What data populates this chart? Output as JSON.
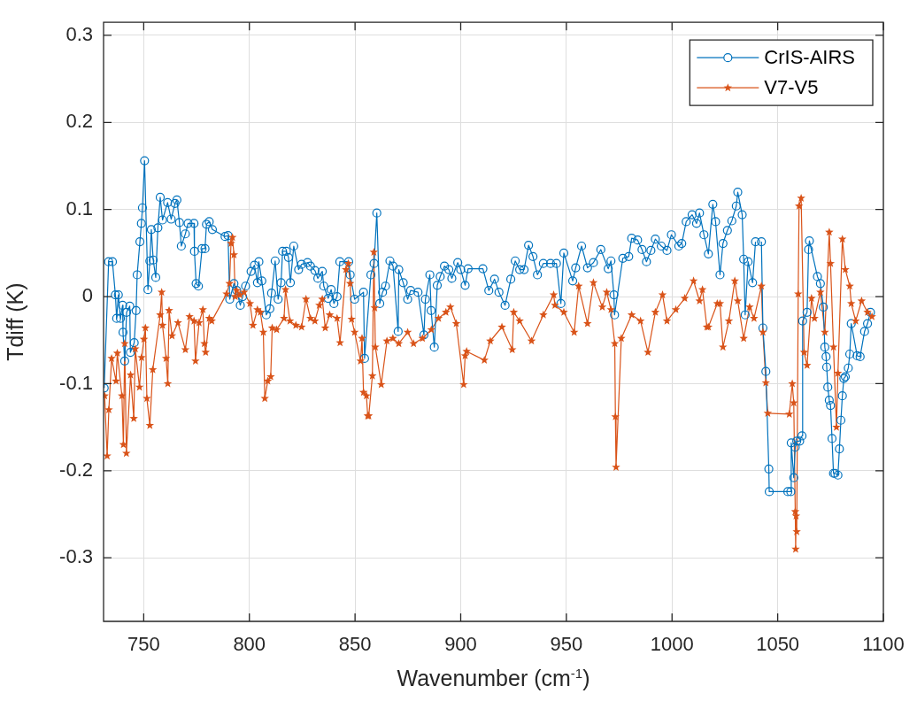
{
  "chart_data": {
    "type": "line",
    "xlabel": "Wavenumber (cm$^{-1}$)",
    "ylabel": "Tdiff (K)",
    "xlim": [
      731,
      1100
    ],
    "xticks": [
      750,
      800,
      850,
      900,
      950,
      1000,
      1050,
      1100
    ],
    "ylim": [
      -0.373,
      0.315
    ],
    "yticks": [
      -0.3,
      -0.2,
      -0.1,
      0,
      0.1,
      0.2,
      0.3
    ],
    "grid": true,
    "legend": "top right",
    "line_style": "solid",
    "series": [
      {
        "name": "CrIS-AIRS",
        "color": "#0072bd",
        "marker": "circle",
        "x": [
          731.3,
          733.4,
          735.2,
          736.6,
          737.2,
          738.0,
          739.0,
          740.0,
          740.2,
          741.0,
          741.9,
          743.4,
          743.7,
          745.5,
          746.4,
          746.9,
          748.2,
          748.9,
          749.4,
          750.4,
          752.0,
          752.9,
          753.6,
          754.5,
          755.7,
          756.7,
          757.8,
          758.9,
          761.3,
          763.0,
          764.8,
          765.7,
          766.9,
          767.8,
          769.7,
          771.0,
          773.8,
          774.0,
          774.8,
          775.9,
          777.6,
          779.0,
          779.7,
          781.0,
          782.5,
          788.5,
          789.9,
          790.7,
          792.7,
          794.0,
          795.7,
          796.8,
          798.2,
          800.8,
          802.4,
          803.8,
          804.5,
          805.9,
          808.0,
          809.7,
          810.5,
          812.2,
          813.6,
          815.0,
          815.7,
          817.5,
          818.5,
          819.4,
          821.0,
          823.3,
          824.7,
          827.5,
          828.9,
          831.0,
          832.4,
          834.5,
          835.2,
          837.3,
          838.7,
          840.0,
          841.5,
          842.8,
          847.0,
          847.7,
          849.8,
          854.0,
          854.5,
          857.5,
          859.0,
          860.3,
          861.7,
          863.0,
          864.4,
          866.5,
          868.0,
          870.4,
          870.7,
          872.8,
          874.9,
          876.3,
          879.8,
          882.6,
          883.3,
          885.4,
          886.0,
          887.5,
          888.9,
          890.3,
          892.3,
          894.4,
          895.8,
          898.6,
          900.0,
          902.1,
          903.5,
          910.5,
          913.3,
          916.0,
          918.1,
          921.0,
          923.7,
          925.8,
          927.9,
          930.0,
          932.1,
          934.2,
          936.3,
          939.1,
          942.5,
          945.3,
          947.4,
          948.8,
          953.0,
          954.4,
          957.2,
          960.0,
          962.8,
          966.3,
          969.8,
          971.1,
          972.5,
          972.8,
          976.7,
          979.5,
          980.9,
          983.7,
          985.8,
          987.9,
          990.0,
          992.1,
          994.9,
          997.6,
          999.7,
          1003.2,
          1004.6,
          1006.7,
          1009.5,
          1011.6,
          1013.0,
          1015.1,
          1017.2,
          1019.3,
          1020.6,
          1022.7,
          1024.1,
          1026.2,
          1028.3,
          1030.4,
          1031.1,
          1033.2,
          1033.9,
          1034.6,
          1036.0,
          1038.1,
          1039.5,
          1040.9,
          1042.3,
          1043.0,
          1044.4,
          1045.8,
          1046.0,
          1054.8,
          1056.2,
          1056.4,
          1057.6,
          1058.3,
          1059.0,
          1060.4,
          1061.5,
          1061.8,
          1063.9,
          1064.6,
          1065.0,
          1068.8,
          1070.2,
          1071.6,
          1072.3,
          1072.9,
          1073.2,
          1073.7,
          1074.4,
          1075.0,
          1075.7,
          1076.4,
          1077.1,
          1078.5,
          1079.2,
          1079.9,
          1080.6,
          1081.3,
          1082.0,
          1083.4,
          1084.1,
          1084.8,
          1087.6,
          1089.0,
          1091.1,
          1092.5,
          1093.9
        ],
        "values": [
          -0.105,
          0.04,
          0.04,
          0.002,
          -0.025,
          0.002,
          -0.025,
          -0.01,
          -0.041,
          -0.074,
          -0.018,
          -0.011,
          -0.064,
          -0.053,
          -0.016,
          0.025,
          0.063,
          0.084,
          0.102,
          0.156,
          0.008,
          0.041,
          0.077,
          0.042,
          0.022,
          0.079,
          0.114,
          0.088,
          0.108,
          0.089,
          0.107,
          0.111,
          0.085,
          0.058,
          0.072,
          0.084,
          0.084,
          0.052,
          0.015,
          0.012,
          0.055,
          0.055,
          0.083,
          0.086,
          0.077,
          0.069,
          0.07,
          -0.003,
          0.015,
          0.007,
          -0.01,
          0.0,
          0.012,
          0.029,
          0.036,
          0.016,
          0.04,
          0.018,
          -0.021,
          -0.014,
          0.004,
          0.041,
          -0.003,
          0.016,
          0.052,
          0.052,
          0.045,
          0.016,
          0.058,
          0.031,
          0.037,
          0.039,
          0.035,
          0.03,
          0.021,
          0.029,
          0.012,
          -0.002,
          0.008,
          -0.008,
          0.0,
          0.04,
          0.04,
          0.025,
          -0.003,
          0.005,
          -0.071,
          0.025,
          0.038,
          0.096,
          -0.008,
          0.005,
          0.012,
          0.041,
          0.035,
          -0.04,
          0.031,
          0.016,
          -0.003,
          0.007,
          0.005,
          -0.044,
          -0.003,
          0.025,
          -0.016,
          -0.058,
          0.013,
          0.023,
          0.035,
          0.031,
          0.021,
          0.039,
          0.031,
          0.013,
          0.032,
          0.032,
          0.007,
          0.02,
          0.005,
          -0.01,
          0.02,
          0.041,
          0.031,
          0.031,
          0.059,
          0.046,
          0.025,
          0.038,
          0.038,
          0.038,
          -0.008,
          0.05,
          0.018,
          0.033,
          0.058,
          0.033,
          0.039,
          0.054,
          0.032,
          0.041,
          0.002,
          -0.021,
          0.044,
          0.046,
          0.067,
          0.065,
          0.054,
          0.04,
          0.053,
          0.066,
          0.058,
          0.053,
          0.071,
          0.058,
          0.061,
          0.086,
          0.094,
          0.084,
          0.096,
          0.071,
          0.049,
          0.106,
          0.086,
          0.025,
          0.061,
          0.076,
          0.087,
          0.104,
          0.12,
          0.094,
          0.043,
          -0.021,
          0.04,
          0.016,
          0.063,
          null,
          0.063,
          -0.036,
          -0.086,
          -0.198,
          -0.224,
          -0.224,
          -0.224,
          -0.168,
          -0.208,
          -0.173,
          -0.166,
          -0.166,
          -0.16,
          -0.028,
          -0.018,
          0.054,
          0.064,
          0.023,
          0.015,
          -0.012,
          -0.058,
          -0.069,
          -0.081,
          -0.104,
          -0.119,
          -0.125,
          -0.163,
          -0.203,
          -0.203,
          -0.205,
          -0.175,
          -0.142,
          -0.114,
          -0.094,
          -0.092,
          -0.082,
          -0.066,
          -0.031,
          -0.068,
          -0.069,
          -0.04,
          -0.031,
          -0.018
        ]
      },
      {
        "name": "V7-V5",
        "color": "#d95319",
        "marker": "star",
        "x": [
          731.5,
          732.7,
          733.5,
          734.8,
          736.9,
          737.5,
          739.7,
          740.4,
          741.0,
          741.8,
          743.8,
          745.3,
          746.0,
          748.0,
          749.0,
          750.1,
          750.8,
          751.5,
          752.9,
          754.3,
          757.8,
          758.5,
          758.9,
          760.6,
          761.4,
          762.0,
          763.4,
          766.2,
          769.7,
          771.7,
          773.8,
          774.5,
          776.2,
          778.0,
          778.7,
          779.3,
          781.0,
          782.2,
          789.2,
          790.6,
          791.3,
          792.0,
          792.7,
          793.3,
          794.0,
          795.5,
          797.5,
          800.3,
          801.7,
          803.8,
          805.2,
          806.6,
          807.3,
          808.7,
          810.1,
          810.8,
          812.9,
          816.4,
          817.1,
          819.2,
          822.0,
          824.7,
          826.8,
          828.9,
          831.0,
          833.1,
          834.5,
          835.9,
          838.0,
          841.5,
          842.9,
          845.7,
          846.8,
          847.7,
          848.4,
          849.8,
          852.6,
          853.3,
          854.0,
          855.4,
          856.0,
          856.5,
          858.2,
          858.9,
          859.3,
          859.6,
          862.4,
          865.1,
          867.9,
          870.7,
          874.9,
          877.7,
          881.9,
          886.1,
          889.5,
          893.0,
          895.1,
          897.9,
          901.4,
          902.1,
          902.8,
          911.2,
          914.0,
          919.5,
          924.4,
          925.1,
          927.9,
          933.5,
          939.1,
          944.0,
          944.6,
          948.8,
          953.7,
          955.8,
          960.0,
          962.8,
          967.0,
          969.1,
          971.1,
          972.9,
          973.2,
          973.5,
          976.0,
          980.9,
          985.1,
          988.6,
          992.1,
          995.5,
          997.6,
          1001.8,
          1006.0,
          1010.2,
          1013.0,
          1014.4,
          1016.5,
          1017.2,
          1021.4,
          1022.7,
          1024.1,
          1026.9,
          1029.7,
          1031.1,
          1033.9,
          1036.7,
          1038.8,
          1042.3,
          1043.0,
          1044.4,
          1045.3,
          1055.5,
          1056.9,
          1057.6,
          1058.3,
          1058.5,
          1058.7,
          1059.0,
          1059.7,
          1060.1,
          1061.1,
          1062.5,
          1063.9,
          1066.0,
          1067.4,
          1070.2,
          1072.3,
          1074.4,
          1075.0,
          1076.4,
          1077.8,
          1078.5,
          1080.6,
          1082.0,
          1084.1,
          1084.8,
          1086.9,
          1089.7,
          1092.5,
          1094.6
        ],
        "values": [
          -0.114,
          -0.183,
          -0.13,
          -0.071,
          -0.097,
          -0.065,
          -0.114,
          -0.17,
          -0.054,
          -0.18,
          -0.09,
          -0.14,
          -0.06,
          -0.104,
          -0.07,
          -0.049,
          -0.036,
          -0.117,
          -0.148,
          -0.084,
          -0.021,
          0.005,
          -0.033,
          -0.071,
          -0.1,
          -0.016,
          -0.045,
          -0.03,
          -0.061,
          -0.023,
          -0.028,
          -0.074,
          -0.03,
          -0.015,
          -0.054,
          -0.064,
          -0.025,
          -0.028,
          0.003,
          0.015,
          0.061,
          0.068,
          0.048,
          0.0,
          0.007,
          0.002,
          0.005,
          -0.008,
          -0.033,
          -0.015,
          -0.018,
          -0.041,
          -0.117,
          -0.097,
          -0.092,
          -0.036,
          -0.038,
          -0.025,
          0.008,
          -0.028,
          -0.033,
          -0.035,
          -0.003,
          -0.025,
          -0.028,
          -0.01,
          -0.003,
          -0.036,
          -0.021,
          -0.025,
          -0.053,
          0.031,
          0.038,
          0.015,
          -0.026,
          -0.041,
          -0.074,
          -0.048,
          -0.11,
          -0.114,
          -0.137,
          -0.137,
          -0.091,
          0.051,
          -0.013,
          -0.058,
          -0.101,
          -0.051,
          -0.048,
          -0.054,
          -0.041,
          -0.054,
          -0.048,
          -0.038,
          -0.025,
          -0.018,
          -0.012,
          -0.031,
          -0.101,
          -0.068,
          -0.063,
          -0.073,
          -0.051,
          -0.035,
          -0.061,
          -0.018,
          -0.028,
          -0.051,
          -0.021,
          0.002,
          -0.01,
          -0.018,
          -0.041,
          0.012,
          -0.031,
          0.016,
          -0.012,
          0.005,
          -0.015,
          -0.054,
          -0.138,
          -0.196,
          -0.048,
          -0.021,
          -0.028,
          -0.064,
          -0.018,
          0.002,
          -0.028,
          -0.015,
          -0.002,
          0.018,
          -0.005,
          0.008,
          -0.035,
          -0.035,
          -0.008,
          -0.008,
          -0.058,
          -0.028,
          0.018,
          -0.005,
          -0.048,
          -0.012,
          -0.025,
          0.012,
          -0.041,
          -0.099,
          -0.134,
          -0.135,
          -0.1,
          -0.122,
          -0.247,
          -0.29,
          -0.252,
          -0.27,
          0.003,
          0.104,
          0.113,
          -0.064,
          -0.079,
          -0.002,
          -0.025,
          0.005,
          -0.041,
          0.074,
          0.038,
          -0.058,
          -0.15,
          -0.088,
          0.066,
          0.031,
          0.012,
          -0.008,
          -0.028,
          -0.005,
          -0.018,
          -0.023
        ]
      }
    ]
  }
}
